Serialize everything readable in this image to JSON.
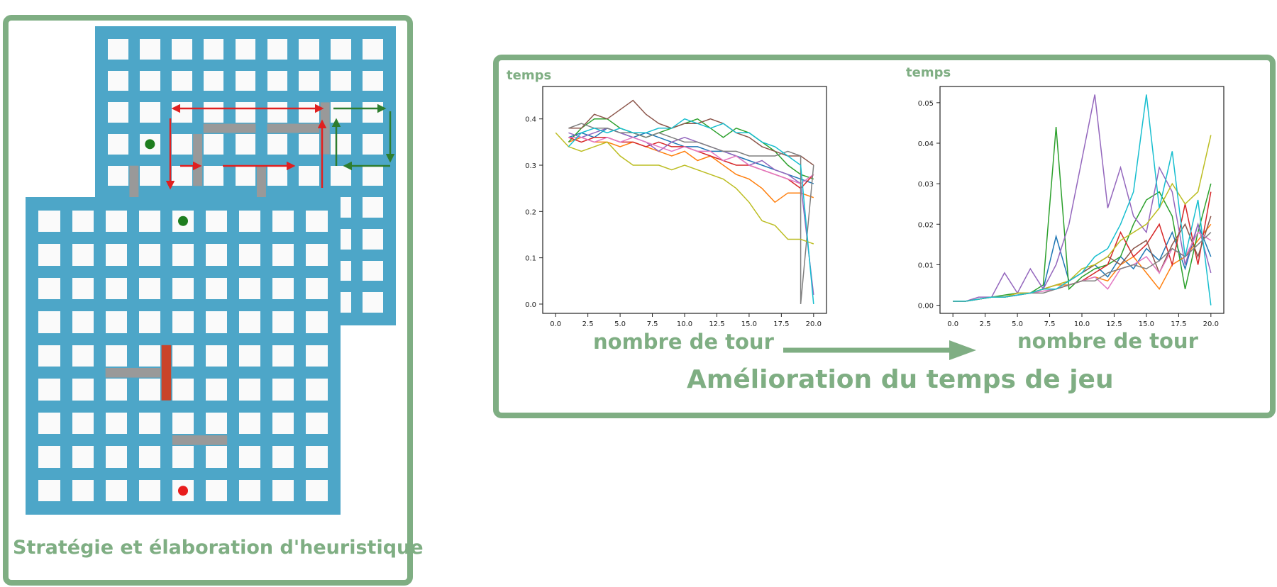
{
  "left": {
    "caption": "Stratégie et élaboration d'heuristique",
    "board_size": 9,
    "back_board": {
      "pawn_green": {
        "col": 1,
        "row": 3
      },
      "walls": [
        {
          "dir": "v",
          "col": 0,
          "row": 4,
          "color": "#999999"
        },
        {
          "dir": "v",
          "col": 2,
          "row": 3,
          "color": "#999999"
        },
        {
          "dir": "v",
          "col": 4,
          "row": 4,
          "color": "#999999"
        },
        {
          "dir": "h",
          "col": 3,
          "row": 2,
          "color": "#999999"
        },
        {
          "dir": "h",
          "col": 5,
          "row": 2,
          "color": "#999999"
        },
        {
          "dir": "v",
          "col": 6,
          "row": 2,
          "color": "#999999"
        }
      ]
    },
    "front_board": {
      "pawn_green": {
        "col": 4,
        "row": 0
      },
      "pawn_red": {
        "col": 4,
        "row": 8
      },
      "walls": [
        {
          "dir": "h",
          "col": 2,
          "row": 4,
          "color": "#999999"
        },
        {
          "dir": "v",
          "col": 3,
          "row": 4,
          "color": "#c9442a"
        },
        {
          "dir": "h",
          "col": 4,
          "row": 6,
          "color": "#999999"
        }
      ]
    },
    "colors": {
      "board": "#4da6c8",
      "cell": "#fafafa",
      "pawn_green": "#1e7d1e",
      "pawn_red": "#e81c1c",
      "arrow_red": "#e02020",
      "arrow_green": "#2e7d2e"
    }
  },
  "right": {
    "caption": "Amélioration du temps de jeu",
    "xlabel": "nombre de tour",
    "ylabel": "temps",
    "border_color": "#7fae83"
  },
  "chart_data": [
    {
      "type": "line",
      "xlabel": "nombre de tour",
      "ylabel": "temps",
      "xlim": [
        -1,
        21
      ],
      "ylim": [
        -0.02,
        0.47
      ],
      "xticks": [
        0,
        2.5,
        5,
        7.5,
        10,
        12.5,
        15,
        17.5,
        20
      ],
      "xtick_labels": [
        "0.0",
        "2.5",
        "5.0",
        "7.5",
        "10.0",
        "12.5",
        "15.0",
        "17.5",
        "20.0"
      ],
      "yticks": [
        0,
        0.1,
        0.2,
        0.3,
        0.4
      ],
      "ytick_labels": [
        "0.0",
        "0.1",
        "0.2",
        "0.3",
        "0.4"
      ],
      "series": [
        {
          "color": "#1f77b4",
          "x": [
            1,
            2,
            3,
            4,
            5,
            6,
            7,
            8,
            9,
            10,
            11,
            12,
            13,
            14,
            15,
            16,
            17,
            18,
            19,
            20
          ],
          "y": [
            0.36,
            0.37,
            0.36,
            0.38,
            0.37,
            0.36,
            0.37,
            0.36,
            0.35,
            0.34,
            0.34,
            0.33,
            0.33,
            0.32,
            0.31,
            0.3,
            0.29,
            0.28,
            0.27,
            0.26
          ]
        },
        {
          "color": "#ff7f0e",
          "x": [
            1,
            2,
            3,
            4,
            5,
            6,
            7,
            8,
            9,
            10,
            11,
            12,
            13,
            14,
            15,
            16,
            17,
            18,
            19,
            20
          ],
          "y": [
            0.35,
            0.36,
            0.35,
            0.35,
            0.34,
            0.35,
            0.34,
            0.33,
            0.32,
            0.33,
            0.31,
            0.32,
            0.3,
            0.28,
            0.27,
            0.25,
            0.22,
            0.24,
            0.24,
            0.23
          ]
        },
        {
          "color": "#2ca02c",
          "x": [
            1,
            2,
            3,
            4,
            5,
            6,
            7,
            8,
            9,
            10,
            11,
            12,
            13,
            14,
            15,
            16,
            17,
            18,
            19,
            20
          ],
          "y": [
            0.35,
            0.38,
            0.4,
            0.4,
            0.38,
            0.37,
            0.36,
            0.37,
            0.38,
            0.39,
            0.4,
            0.38,
            0.36,
            0.38,
            0.37,
            0.35,
            0.33,
            0.3,
            0.28,
            0.27
          ]
        },
        {
          "color": "#d62728",
          "x": [
            1,
            2,
            3,
            4,
            5,
            6,
            7,
            8,
            9,
            10,
            11,
            12,
            13,
            14,
            15,
            16,
            17,
            18,
            19,
            20
          ],
          "y": [
            0.36,
            0.35,
            0.36,
            0.36,
            0.35,
            0.35,
            0.34,
            0.35,
            0.34,
            0.34,
            0.33,
            0.32,
            0.31,
            0.3,
            0.3,
            0.29,
            0.28,
            0.27,
            0.25,
            0.28
          ]
        },
        {
          "color": "#9467bd",
          "x": [
            1,
            2,
            3,
            4,
            5,
            6,
            7,
            8,
            9,
            10,
            11,
            12,
            13,
            14,
            15,
            16,
            17,
            18,
            19,
            20
          ],
          "y": [
            0.37,
            0.36,
            0.37,
            0.38,
            0.37,
            0.36,
            0.35,
            0.33,
            0.35,
            0.36,
            0.35,
            0.34,
            0.33,
            0.32,
            0.3,
            0.31,
            0.29,
            0.28,
            0.26,
            0.02
          ]
        },
        {
          "color": "#8c564b",
          "x": [
            1,
            2,
            3,
            4,
            5,
            6,
            7,
            8,
            9,
            10,
            11,
            12,
            13,
            14,
            15,
            16,
            17,
            18,
            19,
            20
          ],
          "y": [
            0.38,
            0.38,
            0.41,
            0.4,
            0.42,
            0.44,
            0.41,
            0.39,
            0.38,
            0.39,
            0.39,
            0.4,
            0.39,
            0.37,
            0.36,
            0.34,
            0.33,
            0.32,
            0.32,
            0.3
          ]
        },
        {
          "color": "#e377c2",
          "x": [
            1,
            2,
            3,
            4,
            5,
            6,
            7,
            8,
            9,
            10,
            11,
            12,
            13,
            14,
            15,
            16,
            17,
            18,
            19,
            20
          ],
          "y": [
            0.36,
            0.36,
            0.35,
            0.36,
            0.35,
            0.36,
            0.35,
            0.34,
            0.33,
            0.34,
            0.33,
            0.33,
            0.31,
            0.32,
            0.3,
            0.29,
            0.28,
            0.27,
            0.26,
            0.28
          ]
        },
        {
          "color": "#7f7f7f",
          "x": [
            1,
            2,
            3,
            4,
            5,
            6,
            7,
            8,
            9,
            10,
            11,
            12,
            13,
            14,
            15,
            16,
            17,
            18,
            19,
            19,
            20
          ],
          "y": [
            0.38,
            0.39,
            0.38,
            0.38,
            0.37,
            0.37,
            0.36,
            0.37,
            0.36,
            0.35,
            0.35,
            0.34,
            0.33,
            0.33,
            0.32,
            0.32,
            0.32,
            0.33,
            0.32,
            0.0,
            0.3
          ]
        },
        {
          "color": "#bcbd22",
          "x": [
            0,
            1,
            2,
            3,
            4,
            5,
            6,
            7,
            8,
            9,
            10,
            11,
            12,
            13,
            14,
            15,
            16,
            17,
            18,
            19,
            20
          ],
          "y": [
            0.37,
            0.34,
            0.33,
            0.34,
            0.35,
            0.32,
            0.3,
            0.3,
            0.3,
            0.29,
            0.3,
            0.29,
            0.28,
            0.27,
            0.25,
            0.22,
            0.18,
            0.17,
            0.14,
            0.14,
            0.13
          ]
        },
        {
          "color": "#17becf",
          "x": [
            1,
            2,
            3,
            4,
            5,
            6,
            7,
            8,
            9,
            10,
            11,
            12,
            13,
            14,
            15,
            16,
            17,
            18,
            19,
            20
          ],
          "y": [
            0.34,
            0.37,
            0.38,
            0.37,
            0.38,
            0.37,
            0.37,
            0.38,
            0.38,
            0.4,
            0.39,
            0.38,
            0.39,
            0.37,
            0.37,
            0.35,
            0.34,
            0.32,
            0.3,
            0.0
          ]
        }
      ]
    },
    {
      "type": "line",
      "xlabel": "nombre de tour",
      "ylabel": "temps",
      "xlim": [
        -1,
        21
      ],
      "ylim": [
        -0.002,
        0.054
      ],
      "xticks": [
        0,
        2.5,
        5,
        7.5,
        10,
        12.5,
        15,
        17.5,
        20
      ],
      "xtick_labels": [
        "0.0",
        "2.5",
        "5.0",
        "7.5",
        "10.0",
        "12.5",
        "15.0",
        "17.5",
        "20.0"
      ],
      "yticks": [
        0,
        0.01,
        0.02,
        0.03,
        0.04,
        0.05
      ],
      "ytick_labels": [
        "0.00",
        "0.01",
        "0.02",
        "0.03",
        "0.04",
        "0.05"
      ],
      "series": [
        {
          "color": "#1f77b4",
          "x": [
            0,
            1,
            2,
            3,
            4,
            5,
            6,
            7,
            8,
            9,
            10,
            11,
            12,
            13,
            14,
            15,
            16,
            17,
            18,
            19,
            20
          ],
          "y": [
            0.001,
            0.001,
            0.0015,
            0.002,
            0.002,
            0.0025,
            0.003,
            0.004,
            0.017,
            0.006,
            0.008,
            0.01,
            0.007,
            0.012,
            0.009,
            0.014,
            0.011,
            0.018,
            0.009,
            0.02,
            0.012
          ]
        },
        {
          "color": "#ff7f0e",
          "x": [
            0,
            1,
            2,
            3,
            4,
            5,
            6,
            7,
            8,
            9,
            10,
            11,
            12,
            13,
            14,
            15,
            16,
            17,
            18,
            19,
            20
          ],
          "y": [
            0.001,
            0.001,
            0.0015,
            0.002,
            0.002,
            0.003,
            0.003,
            0.004,
            0.005,
            0.005,
            0.006,
            0.007,
            0.006,
            0.01,
            0.012,
            0.008,
            0.004,
            0.01,
            0.012,
            0.016,
            0.02
          ]
        },
        {
          "color": "#2ca02c",
          "x": [
            0,
            1,
            2,
            3,
            4,
            5,
            6,
            7,
            8,
            9,
            10,
            11,
            12,
            13,
            14,
            15,
            16,
            17,
            18,
            19,
            20
          ],
          "y": [
            0.001,
            0.001,
            0.0015,
            0.002,
            0.0025,
            0.003,
            0.003,
            0.005,
            0.044,
            0.004,
            0.007,
            0.009,
            0.01,
            0.012,
            0.02,
            0.026,
            0.028,
            0.022,
            0.004,
            0.018,
            0.03
          ]
        },
        {
          "color": "#d62728",
          "x": [
            0,
            1,
            2,
            3,
            4,
            5,
            6,
            7,
            8,
            9,
            10,
            11,
            12,
            13,
            14,
            15,
            16,
            17,
            18,
            19,
            20
          ],
          "y": [
            0.001,
            0.001,
            0.0015,
            0.002,
            0.002,
            0.0025,
            0.003,
            0.004,
            0.004,
            0.005,
            0.006,
            0.008,
            0.01,
            0.018,
            0.012,
            0.015,
            0.02,
            0.01,
            0.025,
            0.01,
            0.028
          ]
        },
        {
          "color": "#9467bd",
          "x": [
            0,
            1,
            2,
            3,
            4,
            5,
            6,
            7,
            8,
            9,
            10,
            11,
            12,
            13,
            14,
            15,
            16,
            17,
            18,
            19,
            20
          ],
          "y": [
            0.001,
            0.001,
            0.002,
            0.002,
            0.008,
            0.003,
            0.009,
            0.004,
            0.01,
            0.02,
            0.036,
            0.052,
            0.024,
            0.034,
            0.022,
            0.018,
            0.034,
            0.028,
            0.01,
            0.02,
            0.008
          ]
        },
        {
          "color": "#8c564b",
          "x": [
            0,
            1,
            2,
            3,
            4,
            5,
            6,
            7,
            8,
            9,
            10,
            11,
            12,
            13,
            14,
            15,
            16,
            17,
            18,
            19,
            20
          ],
          "y": [
            0.001,
            0.001,
            0.0015,
            0.002,
            0.002,
            0.003,
            0.003,
            0.004,
            0.005,
            0.006,
            0.008,
            0.01,
            0.012,
            0.01,
            0.014,
            0.016,
            0.008,
            0.015,
            0.02,
            0.012,
            0.022
          ]
        },
        {
          "color": "#e377c2",
          "x": [
            0,
            1,
            2,
            3,
            4,
            5,
            6,
            7,
            8,
            9,
            10,
            11,
            12,
            13,
            14,
            15,
            16,
            17,
            18,
            19,
            20
          ],
          "y": [
            0.001,
            0.001,
            0.0015,
            0.002,
            0.002,
            0.0025,
            0.003,
            0.0035,
            0.004,
            0.005,
            0.006,
            0.007,
            0.004,
            0.009,
            0.01,
            0.012,
            0.008,
            0.014,
            0.012,
            0.018,
            0.016
          ]
        },
        {
          "color": "#7f7f7f",
          "x": [
            0,
            1,
            2,
            3,
            4,
            5,
            6,
            7,
            8,
            9,
            10,
            11,
            12,
            13,
            14,
            15,
            16,
            17,
            18,
            19,
            20
          ],
          "y": [
            0.001,
            0.001,
            0.0015,
            0.002,
            0.002,
            0.0025,
            0.003,
            0.003,
            0.004,
            0.005,
            0.006,
            0.006,
            0.008,
            0.009,
            0.01,
            0.009,
            0.011,
            0.014,
            0.012,
            0.015,
            0.018
          ]
        },
        {
          "color": "#bcbd22",
          "x": [
            0,
            1,
            2,
            3,
            4,
            5,
            6,
            7,
            8,
            9,
            10,
            11,
            12,
            13,
            14,
            15,
            16,
            17,
            18,
            19,
            20
          ],
          "y": [
            0.001,
            0.001,
            0.0015,
            0.002,
            0.002,
            0.003,
            0.003,
            0.004,
            0.005,
            0.006,
            0.009,
            0.01,
            0.012,
            0.016,
            0.018,
            0.02,
            0.024,
            0.03,
            0.025,
            0.028,
            0.042
          ]
        },
        {
          "color": "#17becf",
          "x": [
            0,
            1,
            2,
            3,
            4,
            5,
            6,
            7,
            8,
            9,
            10,
            11,
            12,
            13,
            14,
            15,
            16,
            17,
            18,
            19,
            20
          ],
          "y": [
            0.001,
            0.001,
            0.0015,
            0.002,
            0.002,
            0.0025,
            0.003,
            0.004,
            0.004,
            0.006,
            0.008,
            0.012,
            0.014,
            0.02,
            0.028,
            0.052,
            0.024,
            0.038,
            0.012,
            0.026,
            0.0
          ]
        }
      ]
    }
  ]
}
